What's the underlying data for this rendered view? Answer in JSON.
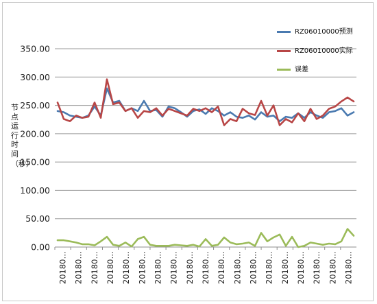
{
  "chart_data": {
    "type": "line",
    "title": "",
    "xlabel": "",
    "ylabel": "节点运行时间（秒）",
    "ylim": [
      0,
      350
    ],
    "yticks": [
      "0.00",
      "50.00",
      "100.00",
      "150.00",
      "200.00",
      "250.00",
      "300.00",
      "350.00"
    ],
    "x_tick_label": "20180…",
    "x_tick_count": 19,
    "grid": true,
    "legend_position": "right",
    "series": [
      {
        "name": "RZ06010000预测",
        "color": "#4a7ab0",
        "values": [
          240,
          238,
          232,
          230,
          228,
          232,
          248,
          232,
          280,
          255,
          258,
          240,
          245,
          240,
          258,
          240,
          242,
          230,
          248,
          245,
          238,
          230,
          240,
          243,
          235,
          245,
          240,
          232,
          238,
          230,
          228,
          232,
          225,
          238,
          230,
          232,
          222,
          230,
          228,
          236,
          228,
          238,
          232,
          228,
          238,
          240,
          245,
          232,
          238
        ]
      },
      {
        "name": "RZ06010000实际",
        "color": "#b84646",
        "values": [
          255,
          226,
          222,
          232,
          228,
          230,
          255,
          228,
          296,
          252,
          255,
          240,
          245,
          228,
          240,
          238,
          245,
          232,
          244,
          240,
          236,
          232,
          244,
          240,
          245,
          238,
          248,
          215,
          226,
          222,
          244,
          236,
          233,
          258,
          232,
          250,
          215,
          226,
          220,
          236,
          222,
          244,
          226,
          232,
          244,
          248,
          257,
          264,
          257
        ]
      },
      {
        "name": "误差",
        "color": "#9bbb59",
        "values": [
          12,
          12,
          10,
          8,
          5,
          5,
          3,
          10,
          18,
          4,
          2,
          8,
          1,
          14,
          18,
          4,
          2,
          2,
          2,
          4,
          3,
          2,
          4,
          1,
          14,
          2,
          4,
          17,
          8,
          5,
          6,
          8,
          2,
          25,
          10,
          17,
          22,
          2,
          18,
          0,
          2,
          8,
          6,
          4,
          6,
          5,
          10,
          32,
          20
        ]
      }
    ]
  }
}
